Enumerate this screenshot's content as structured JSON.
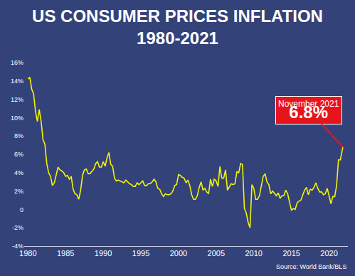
{
  "chart_data": {
    "type": "line",
    "title": "US CONSUMER PRICES INFLATION",
    "subtitle": "1980-2021",
    "color": "#f5f500",
    "grid": false,
    "x": [
      1980,
      1980.25,
      1980.5,
      1980.75,
      1981,
      1981.25,
      1981.5,
      1981.75,
      1982,
      1982.25,
      1982.5,
      1982.75,
      1983,
      1983.25,
      1983.5,
      1983.75,
      1984,
      1984.25,
      1984.5,
      1984.75,
      1985,
      1985.25,
      1985.5,
      1985.75,
      1986,
      1986.25,
      1986.5,
      1986.75,
      1987,
      1987.25,
      1987.5,
      1987.75,
      1988,
      1988.25,
      1988.5,
      1988.75,
      1989,
      1989.25,
      1989.5,
      1989.75,
      1990,
      1990.25,
      1990.5,
      1990.75,
      1991,
      1991.25,
      1991.5,
      1991.75,
      1992,
      1992.25,
      1992.5,
      1992.75,
      1993,
      1993.25,
      1993.5,
      1993.75,
      1994,
      1994.25,
      1994.5,
      1994.75,
      1995,
      1995.25,
      1995.5,
      1995.75,
      1996,
      1996.25,
      1996.5,
      1996.75,
      1997,
      1997.25,
      1997.5,
      1997.75,
      1998,
      1998.25,
      1998.5,
      1998.75,
      1999,
      1999.25,
      1999.5,
      1999.75,
      2000,
      2000.25,
      2000.5,
      2000.75,
      2001,
      2001.25,
      2001.5,
      2001.75,
      2002,
      2002.25,
      2002.5,
      2002.75,
      2003,
      2003.25,
      2003.5,
      2003.75,
      2004,
      2004.25,
      2004.5,
      2004.75,
      2005,
      2005.25,
      2005.5,
      2005.75,
      2006,
      2006.25,
      2006.5,
      2006.75,
      2007,
      2007.25,
      2007.5,
      2007.75,
      2008,
      2008.25,
      2008.5,
      2008.75,
      2009,
      2009.25,
      2009.5,
      2009.75,
      2010,
      2010.25,
      2010.5,
      2010.75,
      2011,
      2011.25,
      2011.5,
      2011.75,
      2012,
      2012.25,
      2012.5,
      2012.75,
      2013,
      2013.25,
      2013.5,
      2013.75,
      2014,
      2014.25,
      2014.5,
      2014.75,
      2015,
      2015.25,
      2015.5,
      2015.75,
      2016,
      2016.25,
      2016.5,
      2016.75,
      2017,
      2017.25,
      2017.5,
      2017.75,
      2018,
      2018.25,
      2018.5,
      2018.75,
      2019,
      2019.25,
      2019.5,
      2019.75,
      2020,
      2020.25,
      2020.5,
      2020.75,
      2021,
      2021.25,
      2021.5,
      2021.83
    ],
    "values": [
      14.2,
      14.4,
      13.1,
      12.6,
      10.7,
      9.6,
      10.9,
      9.6,
      7.6,
      7.1,
      5.0,
      4.0,
      3.6,
      2.6,
      2.9,
      3.8,
      4.6,
      4.3,
      4.2,
      4.0,
      3.6,
      3.7,
      3.3,
      3.6,
      2.2,
      1.7,
      1.6,
      1.1,
      2.1,
      3.7,
      4.3,
      4.4,
      3.9,
      3.9,
      4.2,
      4.4,
      5.0,
      5.2,
      4.6,
      4.6,
      5.2,
      4.7,
      5.6,
      6.2,
      4.9,
      4.7,
      3.4,
      3.1,
      3.2,
      3.1,
      3.0,
      2.9,
      3.2,
      3.0,
      2.8,
      2.7,
      2.5,
      2.5,
      2.9,
      2.7,
      2.9,
      3.1,
      2.6,
      2.6,
      2.8,
      2.8,
      3.0,
      3.3,
      3.0,
      2.3,
      2.2,
      1.7,
      1.4,
      1.7,
      1.6,
      1.6,
      1.7,
      2.0,
      2.6,
      2.7,
      3.8,
      3.7,
      3.5,
      3.4,
      2.9,
      3.2,
      2.6,
      1.6,
      1.1,
      1.1,
      1.5,
      2.4,
      3.0,
      2.1,
      2.3,
      1.9,
      1.7,
      3.3,
      2.5,
      3.3,
      3.1,
      2.5,
      4.7,
      3.4,
      3.4,
      4.3,
      2.1,
      2.5,
      2.8,
      2.7,
      2.8,
      4.1,
      4.0,
      5.0,
      4.9,
      0.1,
      -0.4,
      -1.4,
      -2.0,
      2.7,
      2.3,
      1.1,
      1.1,
      1.5,
      2.7,
      3.6,
      3.9,
      3.0,
      2.7,
      1.7,
      2.0,
      1.7,
      1.5,
      1.8,
      1.2,
      1.5,
      1.5,
      2.1,
      1.7,
      0.8,
      -0.1,
      0.1,
      0.0,
      0.7,
      0.9,
      1.0,
      1.5,
      2.1,
      2.4,
      1.6,
      2.2,
      2.1,
      2.4,
      2.9,
      2.3,
      1.9,
      1.9,
      1.6,
      1.7,
      2.3,
      1.5,
      0.6,
      1.4,
      1.4,
      2.6,
      5.4,
      5.4,
      6.8
    ],
    "xlim": [
      1979.5,
      2022.5
    ],
    "xticks": [
      1980,
      1985,
      1990,
      1995,
      2000,
      2005,
      2010,
      2015,
      2020
    ],
    "ylim": [
      -4,
      16
    ],
    "yticks": [
      {
        "value": -4,
        "label": "-4%"
      },
      {
        "value": -2,
        "label": "-2%"
      },
      0,
      {
        "value": 2,
        "label": "2%"
      },
      {
        "value": 4,
        "label": "4%"
      },
      {
        "value": 6,
        "label": "6%"
      },
      {
        "value": 8,
        "label": "8%"
      },
      {
        "value": 10,
        "label": "10%"
      },
      {
        "value": 12,
        "label": "12%"
      },
      {
        "value": 14,
        "label": "14%"
      },
      {
        "value": 16,
        "label": "16%"
      }
    ],
    "annotations": [
      {
        "x": 2021.83,
        "y": 6.8,
        "label": "November 2021",
        "text": "6.8%"
      }
    ],
    "source": "Source: World Bank/BLS"
  }
}
